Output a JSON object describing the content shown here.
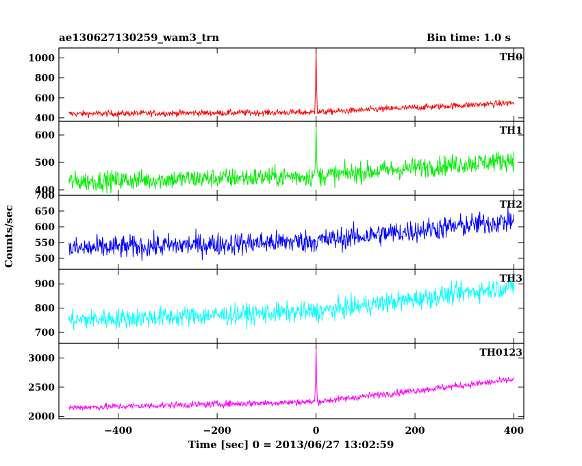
{
  "title": "ae130627130259_wam3_trn",
  "bin_time": "Bin time: 1.0 s",
  "chart_data": {
    "type": "line",
    "ylabel": "Counts/sec",
    "xlabel": "Time [sec] 0 = 2013/06/27 13:02:59",
    "xlim": [
      -520,
      420
    ],
    "x_start": -500,
    "x_end": 400,
    "x_ticks": [
      -400,
      -200,
      0,
      200,
      400
    ],
    "x_tick_labels": [
      "−400",
      "−200",
      "0",
      "200",
      "400"
    ],
    "panels": [
      {
        "name": "TH0",
        "color": "#ff0000",
        "ylim": [
          365,
          1100
        ],
        "y_ticks": [
          400,
          600,
          800,
          1000
        ],
        "y_tick_labels": [
          "400",
          "600",
          "800",
          "1000"
        ],
        "baseline": [
          [
            -500,
            440
          ],
          [
            0,
            455
          ],
          [
            400,
            550
          ]
        ],
        "noise": 30,
        "spike": {
          "x": 0,
          "peak": 1100
        }
      },
      {
        "name": "TH1",
        "color": "#00ee00",
        "ylim": [
          380,
          650
        ],
        "y_ticks": [
          400,
          500,
          600
        ],
        "y_tick_labels": [
          "400",
          "500",
          "600"
        ],
        "baseline": [
          [
            -500,
            430
          ],
          [
            0,
            450
          ],
          [
            400,
            510
          ]
        ],
        "noise": 35,
        "spike": {
          "x": 0,
          "peak": 640
        }
      },
      {
        "name": "TH2",
        "color": "#0000ff",
        "ylim": [
          465,
          700
        ],
        "y_ticks": [
          500,
          550,
          600,
          650,
          700
        ],
        "y_tick_labels": [
          "500",
          "550",
          "600",
          "650",
          "700"
        ],
        "baseline": [
          [
            -500,
            530
          ],
          [
            0,
            555
          ],
          [
            400,
            620
          ]
        ],
        "noise": 35,
        "spike": null
      },
      {
        "name": "TH3",
        "color": "#00ffff",
        "ylim": [
          655,
          960
        ],
        "y_ticks": [
          700,
          800,
          900
        ],
        "y_tick_labels": [
          "700",
          "800",
          "900"
        ],
        "baseline": [
          [
            -500,
            750
          ],
          [
            0,
            785
          ],
          [
            400,
            890
          ]
        ],
        "noise": 40,
        "spike": null
      },
      {
        "name": "TH0123",
        "color": "#ff00ff",
        "ylim": [
          1960,
          3250
        ],
        "y_ticks": [
          2000,
          2500,
          3000
        ],
        "y_tick_labels": [
          "2000",
          "2500",
          "3000"
        ],
        "baseline": [
          [
            -500,
            2150
          ],
          [
            0,
            2250
          ],
          [
            400,
            2630
          ]
        ],
        "noise": 55,
        "spike": {
          "x": 0,
          "peak": 3200
        }
      }
    ]
  }
}
